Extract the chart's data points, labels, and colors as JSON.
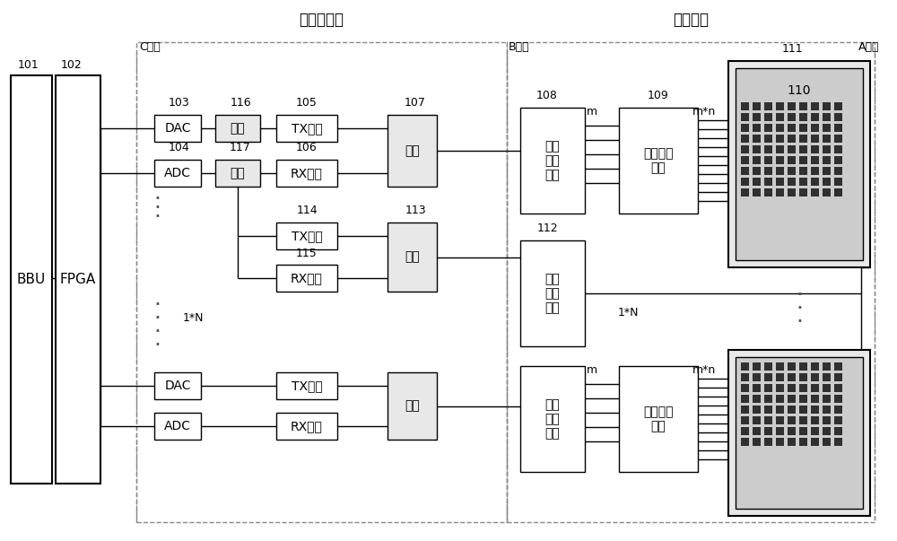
{
  "title_rf": "中射频模块",
  "title_wave": "波控模块",
  "c_face": "C端面",
  "b_face": "B端面",
  "a_face": "A端面",
  "bbu": "BBU",
  "fpga": "FPGA",
  "dac": "DAC",
  "adc": "ADC",
  "kai_guan": "开关",
  "tx": "TX模块",
  "rx": "RX模块",
  "multiplex": "多路\n合分\n模块",
  "amplitude": "调幅调相\n模块",
  "n1": "1*N",
  "m_lbl": "m",
  "mn_lbl": "m*n",
  "id_101": "101",
  "id_102": "102",
  "id_103": "103",
  "id_104": "104",
  "id_105": "105",
  "id_106": "106",
  "id_107": "107",
  "id_108": "108",
  "id_109": "109",
  "id_110": "110",
  "id_111": "111",
  "id_112": "112",
  "id_113": "113",
  "id_114": "114",
  "id_115": "115",
  "id_116": "116",
  "id_117": "117",
  "dash_color": "#888888",
  "box_ec": "#000000",
  "sw_fc": "#e8e8e8",
  "ant_outer_fc": "#e8e8e8",
  "ant_inner_fc": "#cccccc",
  "dot_color": "#303030"
}
